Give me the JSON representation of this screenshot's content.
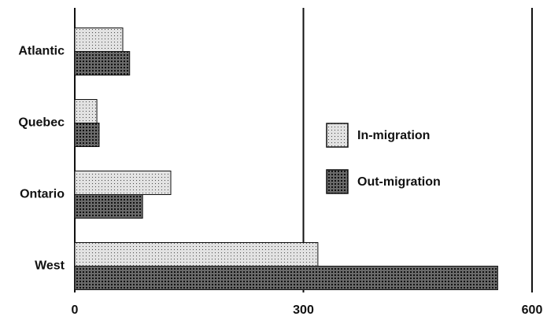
{
  "chart_data": {
    "type": "barh",
    "categories": [
      "Atlantic",
      "Quebec",
      "Ontario",
      "West"
    ],
    "series": [
      {
        "name": "In-migration",
        "color": "#e2e2e2",
        "values": [
          63,
          29,
          126,
          319
        ]
      },
      {
        "name": "Out-migration",
        "color": "#6a6a6a",
        "values": [
          72,
          32,
          89,
          555
        ]
      }
    ],
    "xlim": [
      0,
      600
    ],
    "xticks": [
      0,
      300,
      600
    ],
    "grid": true
  }
}
